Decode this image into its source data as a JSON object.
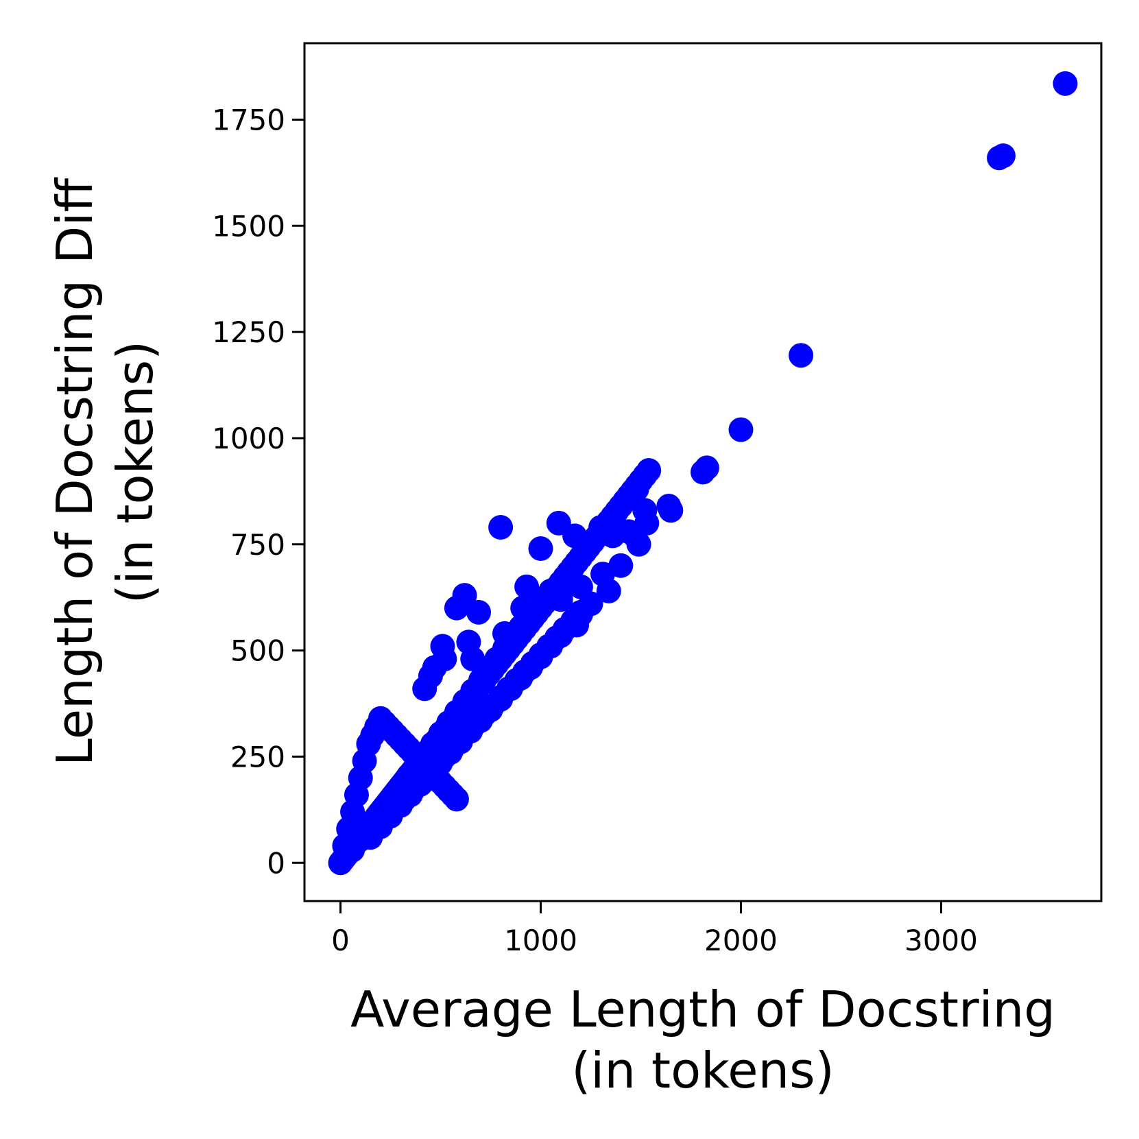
{
  "chart_data": {
    "type": "scatter",
    "title": "",
    "xlabel": [
      "Average Length of Docstring",
      "(in tokens)"
    ],
    "ylabel": [
      "Length of Docstring Diff",
      "(in tokens)"
    ],
    "xlim": [
      -180,
      3800
    ],
    "ylim": [
      -90,
      1930
    ],
    "xticks": [
      0,
      1000,
      2000,
      3000
    ],
    "xtick_labels": [
      "0",
      "1000",
      "2000",
      "3000"
    ],
    "yticks": [
      0,
      250,
      500,
      750,
      1000,
      1250,
      1500,
      1750
    ],
    "ytick_labels": [
      "0",
      "250",
      "500",
      "750",
      "1000",
      "1250",
      "1500",
      "1750"
    ],
    "grid": false,
    "legend": "none",
    "marker_color": "#0000ff",
    "series": [
      {
        "x": [
          0,
          10,
          20,
          30,
          40,
          50,
          60,
          70,
          80,
          90,
          100,
          110,
          120,
          130,
          140,
          150,
          160,
          170,
          180,
          190,
          200,
          210,
          220,
          230,
          240,
          250,
          260,
          270,
          280,
          290,
          300,
          310,
          320,
          330,
          340,
          350,
          360,
          370,
          380,
          390,
          400,
          410,
          420,
          430,
          440,
          450,
          460,
          470,
          480,
          490,
          500,
          510,
          520,
          530,
          540,
          550,
          560,
          570,
          580,
          590,
          600,
          620,
          640,
          660,
          680,
          700,
          720,
          740,
          760,
          780,
          800,
          820,
          840,
          860,
          880,
          900,
          920,
          940,
          960,
          980,
          1000,
          1020,
          1040,
          1060,
          1080,
          1100,
          1120,
          1140,
          1160,
          1180,
          1200,
          1220,
          1240,
          1260,
          1280,
          1300,
          1320,
          1340,
          1360,
          1380,
          1400,
          1420,
          1440,
          1460,
          1480,
          1500,
          1520,
          1540,
          20,
          40,
          60,
          80,
          100,
          120,
          140,
          160,
          180,
          200,
          220,
          240,
          260,
          280,
          300,
          320,
          340,
          360,
          380,
          400,
          420,
          440,
          460,
          480,
          500,
          520,
          540,
          560,
          580,
          60,
          100,
          140,
          180,
          220,
          260,
          300,
          340,
          380,
          420,
          460,
          500,
          540,
          580,
          620,
          660,
          700,
          740,
          780,
          820,
          860,
          900,
          150,
          200,
          250,
          300,
          350,
          400,
          450,
          500,
          550,
          600,
          650,
          700,
          750,
          800,
          850,
          900,
          950,
          1000,
          1050,
          1100,
          1150,
          1200,
          1250,
          320,
          360,
          400,
          440,
          480,
          520,
          560,
          600,
          640,
          680,
          720,
          760,
          800,
          840,
          880,
          920,
          960,
          1000,
          1040,
          1080,
          1120,
          1160,
          1200,
          420,
          470,
          510,
          450,
          520,
          580,
          620,
          640,
          660,
          690,
          800,
          820,
          910,
          930,
          1000,
          1010,
          1050,
          1090,
          1100,
          1170,
          1180,
          1200,
          1300,
          1310,
          1340,
          1360,
          1400,
          1440,
          1470,
          1480,
          1490,
          1520,
          1530,
          1640,
          1650,
          1810,
          1830,
          2000,
          2300,
          3290,
          3310,
          3620
        ],
        "y": [
          0,
          6,
          12,
          18,
          24,
          30,
          36,
          42,
          48,
          54,
          60,
          66,
          72,
          78,
          84,
          90,
          96,
          102,
          108,
          114,
          120,
          126,
          132,
          138,
          144,
          150,
          156,
          162,
          168,
          174,
          180,
          186,
          192,
          198,
          204,
          210,
          216,
          222,
          228,
          234,
          240,
          246,
          252,
          258,
          264,
          270,
          276,
          282,
          288,
          294,
          300,
          306,
          312,
          318,
          324,
          330,
          336,
          342,
          348,
          354,
          360,
          372,
          384,
          396,
          408,
          420,
          432,
          444,
          456,
          468,
          480,
          492,
          504,
          516,
          528,
          540,
          552,
          564,
          576,
          588,
          600,
          612,
          624,
          636,
          648,
          660,
          672,
          684,
          696,
          708,
          720,
          732,
          744,
          756,
          768,
          780,
          792,
          804,
          816,
          828,
          840,
          852,
          864,
          876,
          888,
          900,
          912,
          924,
          40,
          80,
          120,
          160,
          200,
          240,
          280,
          300,
          320,
          340,
          330,
          320,
          310,
          300,
          290,
          280,
          270,
          260,
          250,
          240,
          230,
          220,
          210,
          200,
          190,
          180,
          170,
          160,
          150,
          30,
          55,
          80,
          105,
          130,
          155,
          180,
          205,
          230,
          255,
          280,
          305,
          330,
          355,
          380,
          405,
          430,
          455,
          480,
          505,
          530,
          555,
          60,
          85,
          110,
          135,
          160,
          185,
          210,
          235,
          260,
          285,
          310,
          335,
          360,
          385,
          410,
          435,
          460,
          485,
          510,
          535,
          560,
          585,
          610,
          150,
          170,
          190,
          210,
          230,
          250,
          270,
          290,
          310,
          330,
          350,
          370,
          390,
          410,
          430,
          450,
          470,
          490,
          510,
          530,
          550,
          570,
          590,
          410,
          460,
          510,
          440,
          480,
          600,
          630,
          520,
          480,
          590,
          790,
          540,
          600,
          650,
          740,
          620,
          640,
          800,
          620,
          770,
          560,
          650,
          790,
          680,
          640,
          770,
          700,
          780,
          770,
          880,
          750,
          830,
          800,
          840,
          830,
          920,
          930,
          1020,
          1195,
          1660,
          1665,
          1835
        ]
      }
    ]
  }
}
